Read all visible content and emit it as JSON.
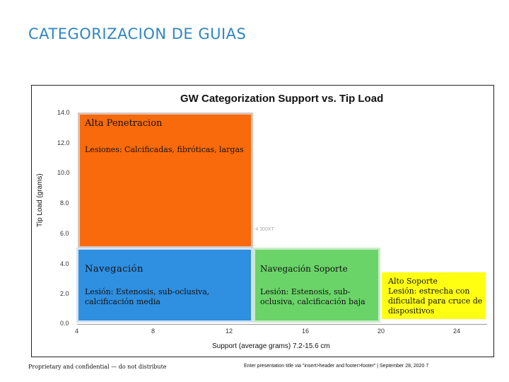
{
  "slide": {
    "title": "CATEGORIZACION DE GUIAS",
    "footer_left": "Proprietary and confidential — do not distribute",
    "footer_right": "Enter presentation title via \"insert>header and footer>footer\" | September 28, 2020 7"
  },
  "chart": {
    "title": "GW Categorization Support vs. Tip Load",
    "ylabel": "Tip Load (grams)",
    "xlabel": "Support (average grams) 7.2-15.6 cm",
    "yticks": [
      "14.0",
      "12.0",
      "10.0",
      "8.0",
      "6.0",
      "4.0",
      "2.0",
      "0.0"
    ],
    "xticks": [
      "4",
      "8",
      "12",
      "16",
      "20",
      "24"
    ],
    "stray_label": "-4 300XT"
  },
  "regions": {
    "alta": {
      "title": "Alta Penetracion",
      "desc": "Lesiones: Calcificadas, fibróticas, largas",
      "color": "#f86a0b"
    },
    "navegacion": {
      "title": "Navegación",
      "desc": "Lesión: Estenosis, sub-oclusiva, calcificación media",
      "color": "#2f8fe0"
    },
    "nav_soporte": {
      "title": "Navegación Soporte",
      "desc": "Lesión: Estenosis, sub-oclusiva, calcificación baja",
      "color": "#6ad468"
    },
    "alto_soporte": {
      "title": "Alto Soporte",
      "desc": "Lesión: estrecha con dificultad para cruce de dispositivos",
      "color": "#ffff11"
    }
  }
}
